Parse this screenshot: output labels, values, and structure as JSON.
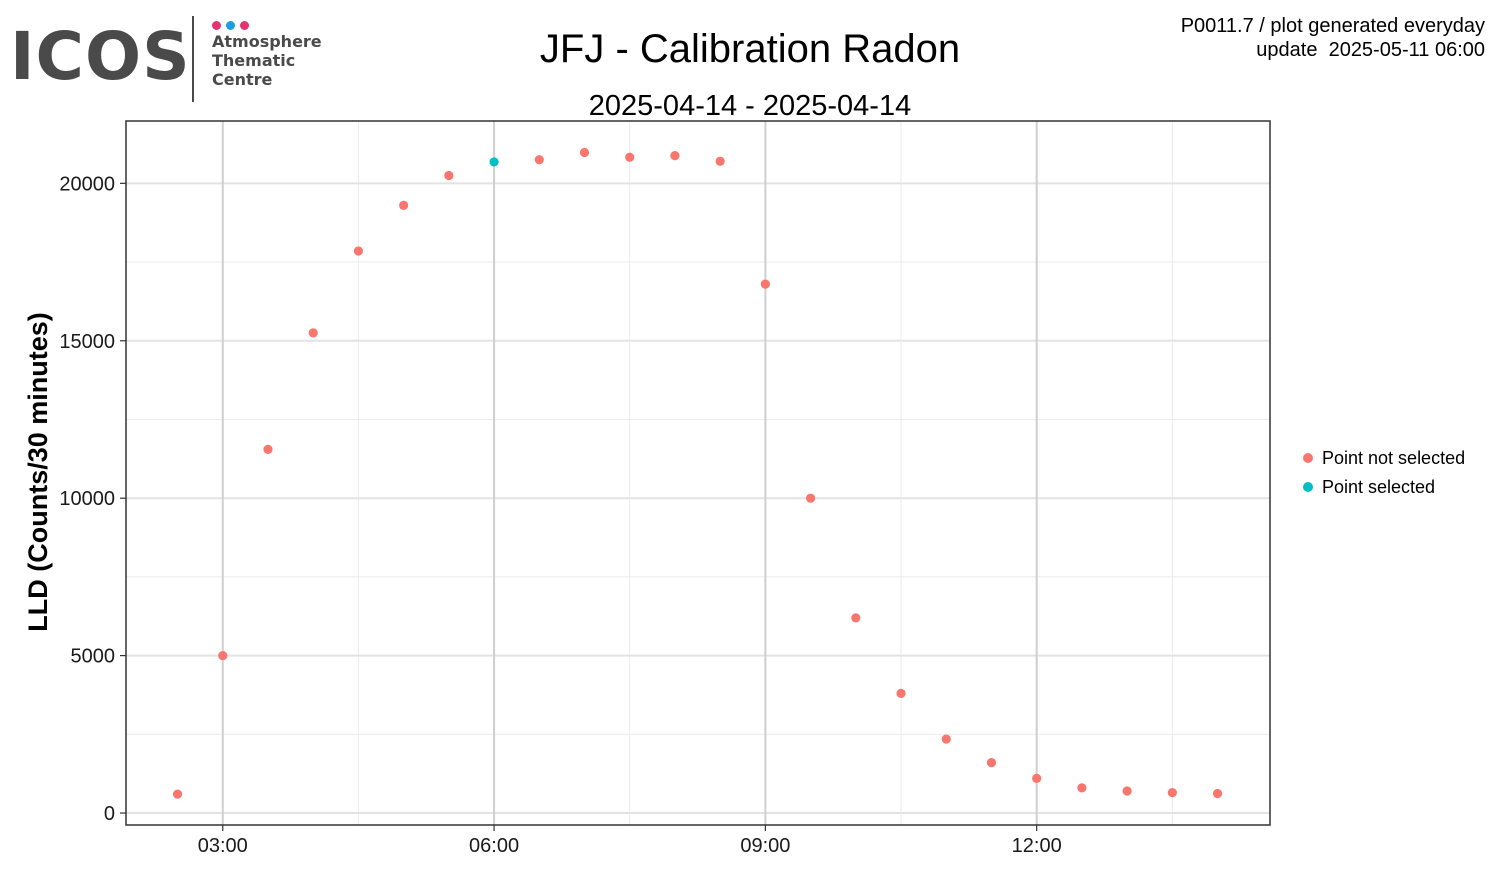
{
  "logo": {
    "wordmark": "ICOS",
    "lines": [
      "Atmosphere",
      "Thematic",
      "Centre"
    ],
    "dot_colors": [
      "#e5336f",
      "#1a9ee0",
      "#e5336f"
    ],
    "color": "#4a4a4a"
  },
  "header": {
    "meta_line1": "P0011.7 / plot generated everyday",
    "meta_line2": "update  2025-05-11 06:00"
  },
  "chart_data": {
    "type": "scatter",
    "title": "JFJ - Calibration Radon",
    "subtitle": "2025-04-14 - 2025-04-14",
    "xlabel": "",
    "ylabel": "LLD (Counts/30 minutes)",
    "x_unit": "time of day (hours)",
    "xlim": [
      1.93,
      14.58
    ],
    "ylim": [
      -380,
      21980
    ],
    "x_ticks": [
      3,
      6,
      9,
      12
    ],
    "x_tick_labels": [
      "03:00",
      "06:00",
      "09:00",
      "12:00"
    ],
    "y_ticks": [
      0,
      5000,
      10000,
      15000,
      20000
    ],
    "y_tick_labels": [
      "0",
      "5000",
      "10000",
      "15000",
      "20000"
    ],
    "grid": true,
    "legend_position": "right",
    "series": [
      {
        "name": "Point not selected",
        "color": "#f8766d",
        "points": [
          {
            "x": "02:30",
            "y": 600
          },
          {
            "x": "03:00",
            "y": 5000
          },
          {
            "x": "03:30",
            "y": 11550
          },
          {
            "x": "04:00",
            "y": 15250
          },
          {
            "x": "04:30",
            "y": 17850
          },
          {
            "x": "05:00",
            "y": 19300
          },
          {
            "x": "05:30",
            "y": 20250
          },
          {
            "x": "06:30",
            "y": 20750
          },
          {
            "x": "07:00",
            "y": 20980
          },
          {
            "x": "07:30",
            "y": 20830
          },
          {
            "x": "08:00",
            "y": 20880
          },
          {
            "x": "08:30",
            "y": 20700
          },
          {
            "x": "09:00",
            "y": 16800
          },
          {
            "x": "09:30",
            "y": 10000
          },
          {
            "x": "10:00",
            "y": 6200
          },
          {
            "x": "10:30",
            "y": 3800
          },
          {
            "x": "11:00",
            "y": 2350
          },
          {
            "x": "11:30",
            "y": 1600
          },
          {
            "x": "12:00",
            "y": 1100
          },
          {
            "x": "12:30",
            "y": 800
          },
          {
            "x": "13:00",
            "y": 700
          },
          {
            "x": "13:30",
            "y": 650
          },
          {
            "x": "14:00",
            "y": 620
          }
        ]
      },
      {
        "name": "Point selected",
        "color": "#00bfc4",
        "points": [
          {
            "x": "06:00",
            "y": 20680
          }
        ]
      }
    ]
  }
}
